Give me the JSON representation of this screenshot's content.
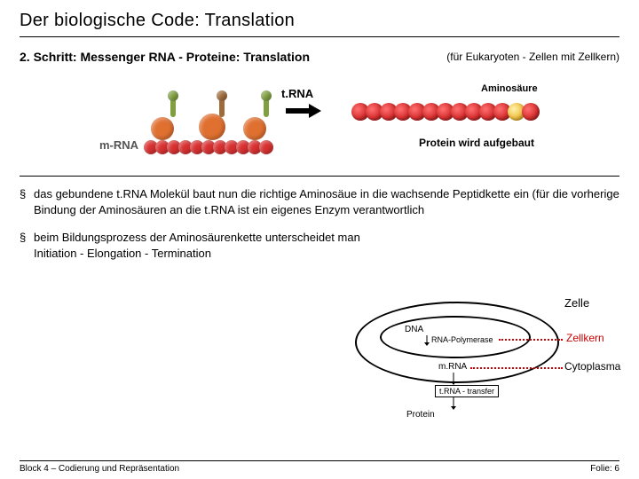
{
  "title": "Der biologische Code: Translation",
  "subtitle": "2. Schritt: Messenger RNA - Proteine: Translation",
  "subnote": "(für Eukaryoten - Zellen mit Zellkern)",
  "figure": {
    "mrna_label": "m-RNA",
    "trna_label": "t.RNA",
    "amino_label": "Aminosäure",
    "protein_label": "Protein wird aufgebaut",
    "ribosome_color": "#d83030",
    "ribosome_highlight": "#e07030",
    "chain_colors": [
      "#d83030",
      "#d83030",
      "#d83030",
      "#d83030",
      "#d83030",
      "#d83030",
      "#d83030",
      "#d83030",
      "#d83030",
      "#d83030",
      "#d83030",
      "#f0c040",
      "#d83030"
    ],
    "chain_size": 20,
    "trna_colors": [
      "#80a040",
      "#a06b3b",
      "#80a040"
    ]
  },
  "bullets": [
    "das gebundene t.RNA Molekül baut nun die richtige Aminosäue in die wachsende Peptidkette ein (für die vorherige Bindung der Aminosäuren an die t.RNA ist ein eigenes Enzym verantwortlich",
    "beim Bildungsprozess der Aminosäurenkette unterscheidet man\nInitiation  -  Elongation  -  Termination"
  ],
  "cell": {
    "zelle": "Zelle",
    "zellkern": "Zellkern",
    "cytoplasma": "Cytoplasma",
    "dna": "DNA",
    "rnapoly": "RNA-Polymerase",
    "mrna": "m.RNA",
    "trna_transfer": "t.RNA - transfer",
    "protein": "Protein",
    "dot_color": "#cc0000"
  },
  "footer": {
    "left": "Block 4 – Codierung und Repräsentation",
    "right": "Folie: 6"
  }
}
